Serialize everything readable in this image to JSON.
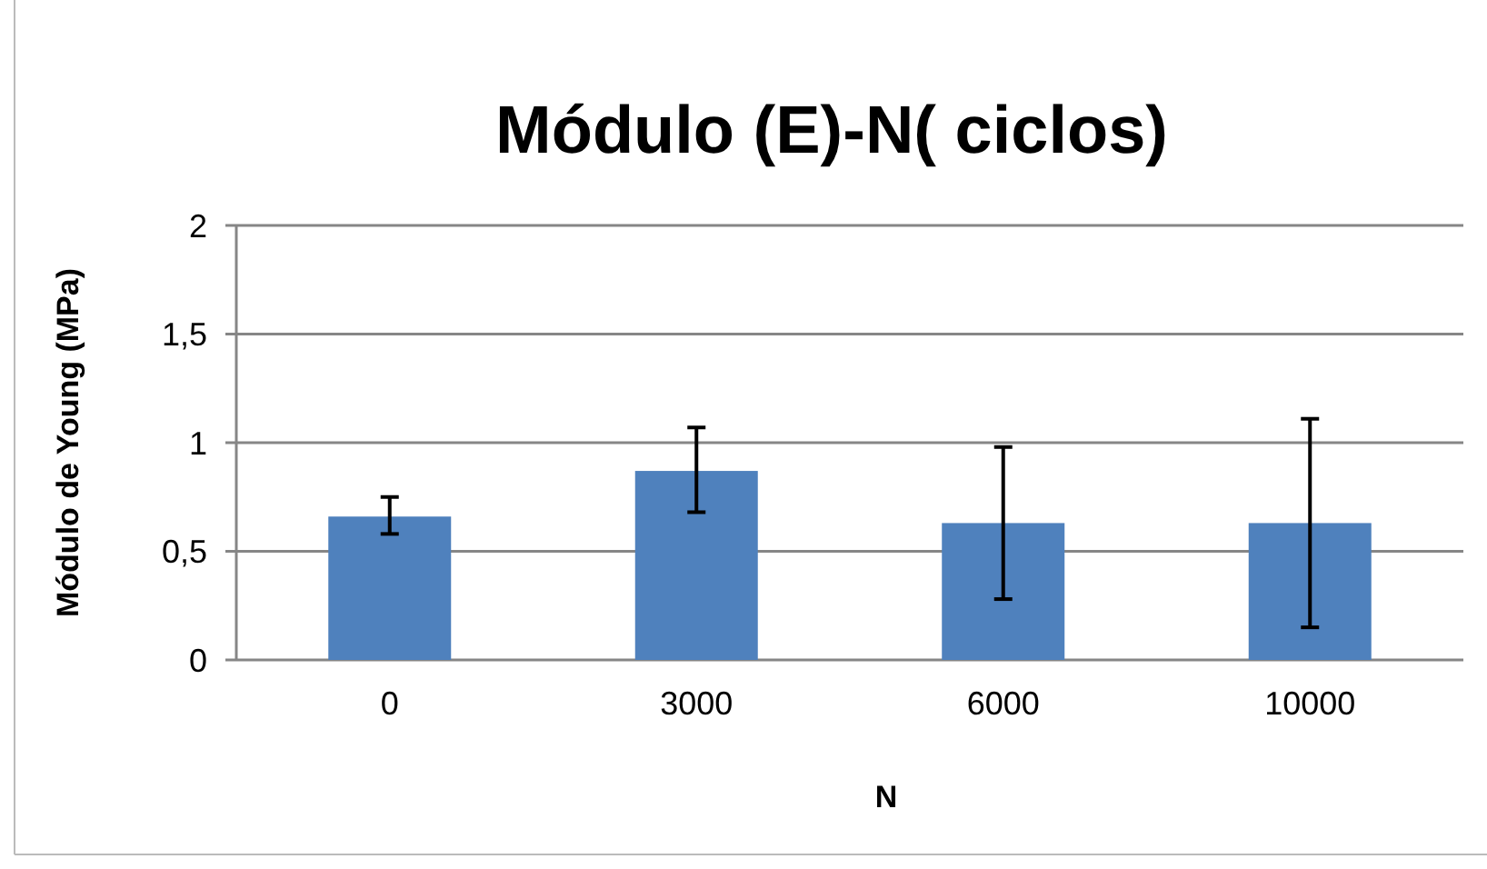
{
  "chart_data": {
    "type": "bar",
    "title": "Módulo (E)-N( ciclos)",
    "xlabel": "N",
    "ylabel": "Módulo de Young (MPa)",
    "categories": [
      "0",
      "3000",
      "6000",
      "10000"
    ],
    "values": [
      0.66,
      0.87,
      0.63,
      0.63
    ],
    "errors": [
      [
        0.58,
        0.75
      ],
      [
        0.68,
        1.07
      ],
      [
        0.28,
        0.98
      ],
      [
        0.15,
        1.11
      ]
    ],
    "color": "#4f81bd",
    "ylim": [
      0,
      2
    ],
    "yticks": [
      0,
      {
        "value": 0.5,
        "label": "0,5"
      },
      1,
      {
        "value": 1.5,
        "label": "1,5"
      },
      2
    ],
    "grid": "y"
  }
}
